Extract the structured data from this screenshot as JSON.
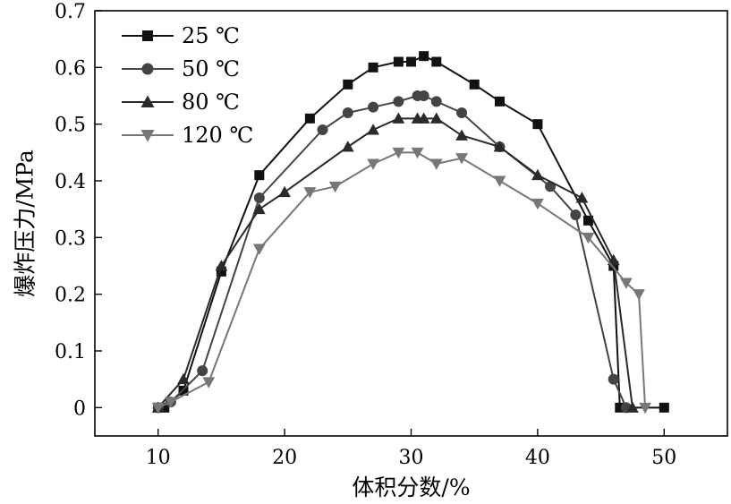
{
  "chart_data": {
    "type": "line",
    "title": "",
    "xlabel": "体积分数/%",
    "ylabel": "爆炸压力/MPa",
    "xlim": [
      5,
      55
    ],
    "ylim": [
      -0.05,
      0.7
    ],
    "xticks": [
      "10",
      "20",
      "30",
      "40",
      "50"
    ],
    "yticks": [
      "0",
      "0.1",
      "0.2",
      "0.3",
      "0.4",
      "0.5",
      "0.6",
      "0.7"
    ],
    "grid": false,
    "legend_position": "top-left",
    "series": [
      {
        "name": "25 ℃",
        "marker": "square",
        "color": "#111111",
        "x": [
          10,
          10.5,
          12,
          15,
          18,
          22,
          25,
          27,
          29,
          30,
          31,
          32,
          35,
          37,
          40,
          44,
          46,
          46.5,
          50
        ],
        "y": [
          0,
          0,
          0.03,
          0.24,
          0.41,
          0.51,
          0.57,
          0.6,
          0.61,
          0.61,
          0.62,
          0.61,
          0.57,
          0.54,
          0.5,
          0.33,
          0.25,
          0,
          0
        ]
      },
      {
        "name": "50 ℃",
        "marker": "circle",
        "color": "#444444",
        "x": [
          10,
          11,
          13.5,
          18,
          23,
          25,
          27,
          29,
          30.5,
          31,
          32,
          34,
          37,
          41,
          43,
          46,
          47
        ],
        "y": [
          0,
          0.01,
          0.065,
          0.37,
          0.49,
          0.52,
          0.53,
          0.54,
          0.55,
          0.55,
          0.54,
          0.52,
          0.46,
          0.39,
          0.34,
          0.05,
          0
        ]
      },
      {
        "name": "80 ℃",
        "marker": "triangle-up",
        "color": "#2a2a2a",
        "x": [
          10,
          12,
          15,
          18,
          20,
          25,
          27,
          29,
          30.5,
          31,
          32,
          34,
          37,
          40,
          43.5,
          46,
          47.5
        ],
        "y": [
          0,
          0.05,
          0.25,
          0.35,
          0.38,
          0.46,
          0.49,
          0.51,
          0.51,
          0.51,
          0.51,
          0.48,
          0.46,
          0.41,
          0.37,
          0.26,
          0
        ]
      },
      {
        "name": "120 ℃",
        "marker": "triangle-down",
        "color": "#777777",
        "x": [
          10,
          11,
          14,
          18,
          22,
          24,
          27,
          29,
          30.5,
          32,
          34,
          37,
          40,
          44,
          47,
          48,
          48.5
        ],
        "y": [
          0,
          0.01,
          0.045,
          0.28,
          0.38,
          0.39,
          0.43,
          0.45,
          0.45,
          0.43,
          0.44,
          0.4,
          0.36,
          0.3,
          0.22,
          0.2,
          0
        ]
      }
    ]
  }
}
